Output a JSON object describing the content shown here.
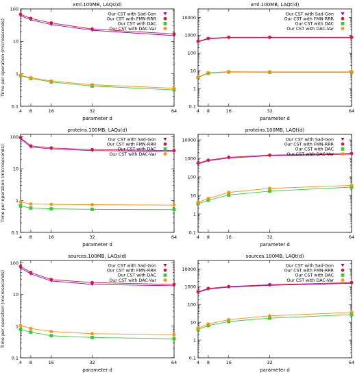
{
  "legend_entries": [
    "Our CST with Sad-Gon",
    "Our CST with FMN-RRR",
    "Our CST with DAC",
    "Our CST with DAC-Var"
  ],
  "colors": {
    "sad_gon": "#9400d3",
    "fmn_rrr": "#dc143c",
    "dac": "#32cd32",
    "dac_var": "#ff8c00"
  },
  "chart_data": [
    {
      "type": "line",
      "title": "xml.100MB, LAQs(d)",
      "xlabel": "parameter d",
      "ylabel": "Time per operation (microseconds)",
      "x": [
        4,
        8,
        16,
        32,
        64
      ],
      "x_ticks": [
        "4",
        "8",
        "16",
        "32",
        "64"
      ],
      "ylim": [
        0.1,
        100
      ],
      "y_ticks": [
        "0.1",
        "1",
        "10",
        "100"
      ],
      "yscale": "log",
      "legend_position": "top-right",
      "series": [
        {
          "name": "Our CST with Sad-Gon",
          "values": [
            62,
            46,
            33,
            22,
            15
          ]
        },
        {
          "name": "Our CST with FMN-RRR",
          "values": [
            68,
            51,
            37,
            24,
            17
          ]
        },
        {
          "name": "Our CST with DAC",
          "values": [
            0.88,
            0.72,
            0.56,
            0.42,
            0.32
          ]
        },
        {
          "name": "Our CST with DAC-Var",
          "values": [
            0.9,
            0.76,
            0.6,
            0.46,
            0.36
          ]
        }
      ]
    },
    {
      "type": "line",
      "title": "xml.100MB, LAQt(d)",
      "xlabel": "parameter d",
      "ylabel": "",
      "x": [
        4,
        8,
        16,
        32,
        64
      ],
      "x_ticks": [
        "4",
        "8",
        "16",
        "32",
        "64"
      ],
      "ylim": [
        0.1,
        30000
      ],
      "y_ticks": [
        "0.1",
        "1",
        "10",
        "100",
        "1000",
        "10000"
      ],
      "yscale": "log",
      "legend_position": "top-right",
      "series": [
        {
          "name": "Our CST with Sad-Gon",
          "values": [
            420,
            620,
            720,
            720,
            720
          ]
        },
        {
          "name": "Our CST with FMN-RRR",
          "values": [
            450,
            660,
            760,
            760,
            760
          ]
        },
        {
          "name": "Our CST with DAC",
          "values": [
            4.2,
            7.2,
            8.4,
            8.2,
            8.2
          ]
        },
        {
          "name": "Our CST with DAC-Var",
          "values": [
            4.4,
            7.6,
            8.8,
            8.6,
            8.6
          ]
        }
      ]
    },
    {
      "type": "line",
      "title": "proteins.100MB, LAQs(d)",
      "xlabel": "parameter d",
      "ylabel": "Time per operation (microseconds)",
      "x": [
        4,
        8,
        16,
        32,
        64
      ],
      "x_ticks": [
        "4",
        "8",
        "16",
        "32",
        "64"
      ],
      "ylim": [
        0.1,
        120
      ],
      "y_ticks": [
        "0.1",
        "1",
        "10",
        "100"
      ],
      "yscale": "log",
      "legend_position": "top-right",
      "series": [
        {
          "name": "Our CST with Sad-Gon",
          "values": [
            88,
            48,
            42,
            37,
            35
          ]
        },
        {
          "name": "Our CST with FMN-RRR",
          "values": [
            95,
            52,
            45,
            40,
            37
          ]
        },
        {
          "name": "Our CST with DAC",
          "values": [
            0.68,
            0.58,
            0.55,
            0.53,
            0.52
          ]
        },
        {
          "name": "Our CST with DAC-Var",
          "values": [
            0.9,
            0.78,
            0.76,
            0.74,
            0.72
          ]
        }
      ]
    },
    {
      "type": "line",
      "title": "proteins.100MB, LAQt(d)",
      "xlabel": "parameter d",
      "ylabel": "",
      "x": [
        4,
        8,
        16,
        32,
        64
      ],
      "x_ticks": [
        "4",
        "8",
        "16",
        "32",
        "64"
      ],
      "ylim": [
        0.1,
        20000
      ],
      "y_ticks": [
        "0.1",
        "1",
        "10",
        "100",
        "1000",
        "10000"
      ],
      "yscale": "log",
      "legend_position": "top-right",
      "series": [
        {
          "name": "Our CST with Sad-Gon",
          "values": [
            500,
            750,
            1050,
            1400,
            1700
          ]
        },
        {
          "name": "Our CST with FMN-RRR",
          "values": [
            550,
            800,
            1150,
            1500,
            1850
          ]
        },
        {
          "name": "Our CST with DAC",
          "values": [
            3.5,
            5.5,
            10.5,
            17,
            28
          ]
        },
        {
          "name": "Our CST with DAC-Var",
          "values": [
            4.2,
            6.8,
            14.5,
            24,
            35
          ]
        }
      ]
    },
    {
      "type": "line",
      "title": "sources.100MB, LAQs(d)",
      "xlabel": "parameter d",
      "ylabel": "Time per operation (microseconds)",
      "x": [
        4,
        8,
        16,
        32,
        64
      ],
      "x_ticks": [
        "4",
        "8",
        "16",
        "32",
        "64"
      ],
      "ylim": [
        0.1,
        120
      ],
      "y_ticks": [
        "0.1",
        "1",
        "10",
        "100"
      ],
      "yscale": "log",
      "legend_position": "top-right",
      "series": [
        {
          "name": "Our CST with Sad-Gon",
          "values": [
            70,
            45,
            27,
            21,
            19
          ]
        },
        {
          "name": "Our CST with FMN-RRR",
          "values": [
            78,
            50,
            30,
            24,
            21
          ]
        },
        {
          "name": "Our CST with DAC",
          "values": [
            0.8,
            0.65,
            0.5,
            0.44,
            0.4
          ]
        },
        {
          "name": "Our CST with DAC-Var",
          "values": [
            1.05,
            0.85,
            0.68,
            0.58,
            0.54
          ]
        }
      ]
    },
    {
      "type": "line",
      "title": "sources.100MB, LAQt(d)",
      "xlabel": "parameter d",
      "ylabel": "",
      "x": [
        4,
        8,
        16,
        32,
        64
      ],
      "x_ticks": [
        "4",
        "8",
        "16",
        "32",
        "64"
      ],
      "ylim": [
        0.1,
        30000
      ],
      "y_ticks": [
        "0.1",
        "1",
        "10",
        "100",
        "1000",
        "10000"
      ],
      "yscale": "log",
      "legend_position": "top-right",
      "series": [
        {
          "name": "Our CST with Sad-Gon",
          "values": [
            480,
            740,
            950,
            1200,
            1550
          ]
        },
        {
          "name": "Our CST with FMN-RRR",
          "values": [
            520,
            800,
            1020,
            1300,
            1700
          ]
        },
        {
          "name": "Our CST with DAC",
          "values": [
            4,
            6.5,
            11,
            17,
            27
          ]
        },
        {
          "name": "Our CST with DAC-Var",
          "values": [
            4.6,
            8,
            14,
            23,
            36
          ]
        }
      ]
    }
  ]
}
